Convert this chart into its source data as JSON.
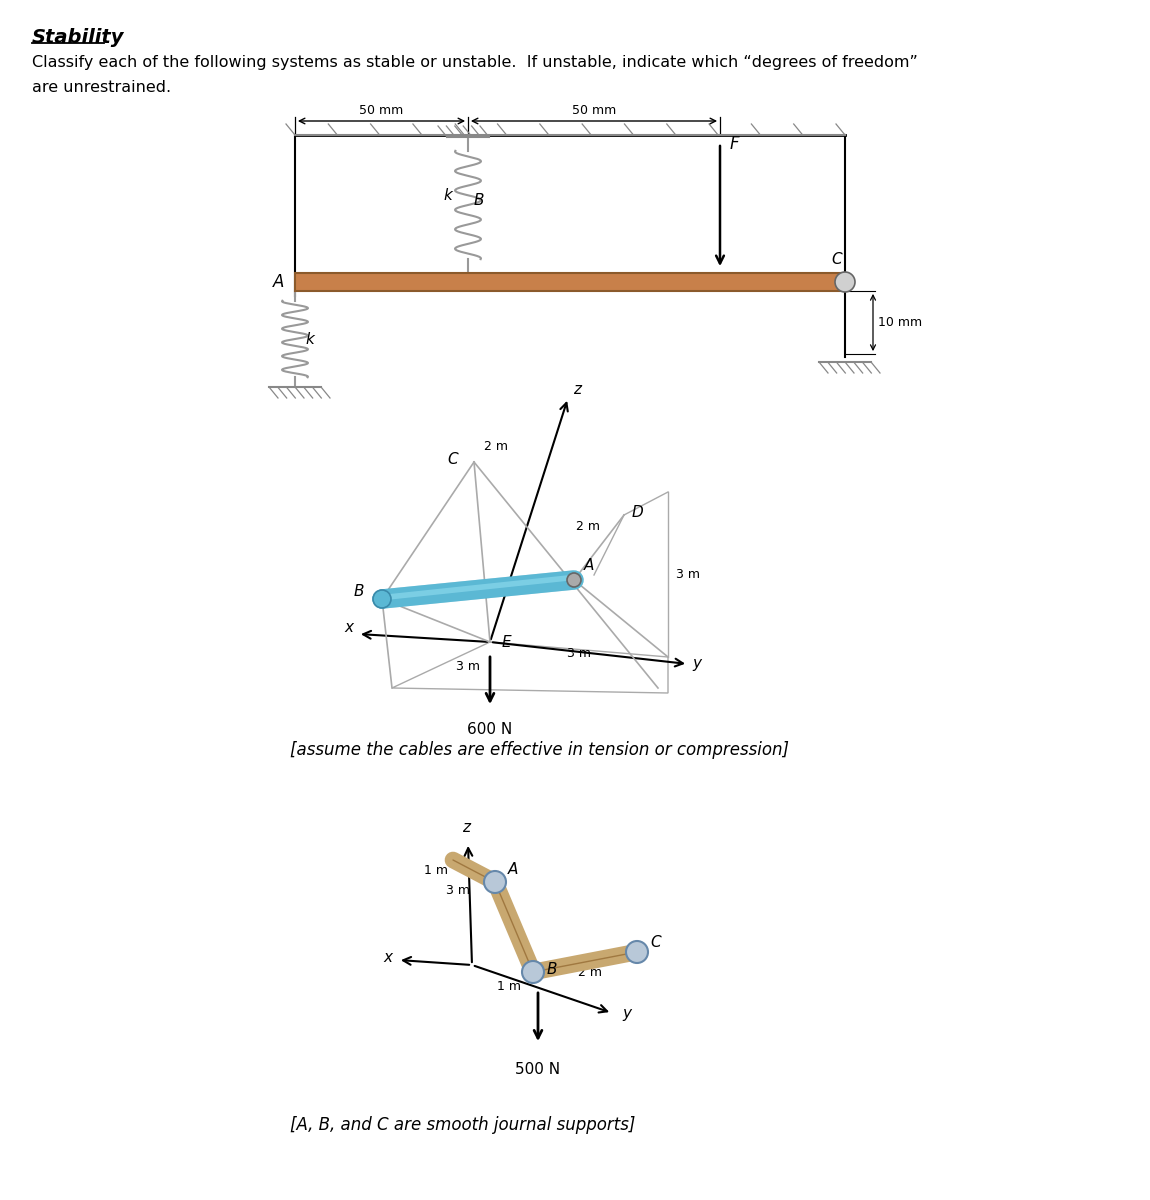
{
  "title": "Stability",
  "subtitle_line1": "Classify each of the following systems as stable or unstable.  If unstable, indicate which “degrees of freedom”",
  "subtitle_line2": "are unrestrained.",
  "d1": {
    "beam_color": "#C8804A",
    "beam_edge_color": "#8B5A2B",
    "spring_color": "#999999",
    "ground_color": "#888888",
    "label_50mm_1": "50 mm",
    "label_50mm_2": "50 mm",
    "label_10mm": "10 mm",
    "label_k": "k",
    "label_A": "A",
    "label_B": "B",
    "label_C": "C",
    "label_F": "F"
  },
  "d2": {
    "note": "[assume the cables are effective in tension or compression]",
    "cable_color": "#AAAAAA",
    "rod_color": "#5BB8D4",
    "rod_highlight": "#8DDAEE",
    "rod_edge": "#3A9AB8",
    "joint_color": "#5BB8D4",
    "joint_A_color": "#AAAAAA",
    "label_B": "B",
    "label_C": "C",
    "label_D": "D",
    "label_A": "A",
    "label_E": "E",
    "label_x": "x",
    "label_y": "y",
    "label_z": "z",
    "load": "600 N"
  },
  "d3": {
    "note": "[A, B, and C are smooth journal supports]",
    "pipe_color": "#C8A870",
    "pipe_edge": "#A07840",
    "joint_color": "#B8C8D8",
    "joint_edge": "#6688AA",
    "label_A": "A",
    "label_B": "B",
    "label_C": "C",
    "label_x": "x",
    "label_y": "y",
    "label_z": "z",
    "load": "500 N"
  },
  "bg_color": "#FFFFFF",
  "text_color": "#000000"
}
